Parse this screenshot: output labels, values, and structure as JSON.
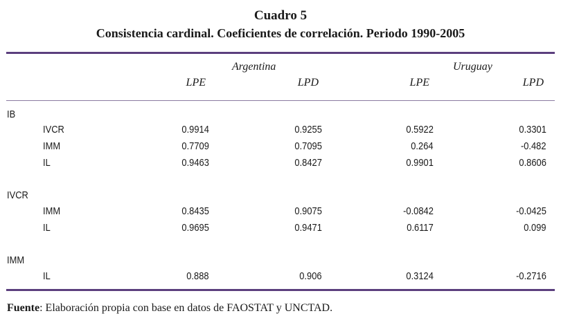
{
  "title": "Cuadro 5",
  "subtitle": "Consistencia cardinal. Coeficientes de correlación. Periodo 1990-2005",
  "countries": [
    "Argentina",
    "Uruguay"
  ],
  "columns": [
    "LPE",
    "LPD",
    "LPE",
    "LPD"
  ],
  "groups": [
    {
      "label": "IB",
      "rows": [
        {
          "label": "IVCR",
          "values": [
            "0.9914",
            "0.9255",
            "0.5922",
            "0.3301"
          ]
        },
        {
          "label": "IMM",
          "values": [
            "0.7709",
            "0.7095",
            "0.264",
            "-0.482"
          ]
        },
        {
          "label": "IL",
          "values": [
            "0.9463",
            "0.8427",
            "0.9901",
            "0.8606"
          ]
        }
      ]
    },
    {
      "label": "IVCR",
      "rows": [
        {
          "label": "IMM",
          "values": [
            "0.8435",
            "0.9075",
            "-0.0842",
            "-0.0425"
          ]
        },
        {
          "label": "IL",
          "values": [
            "0.9695",
            "0.9471",
            "0.6117",
            "0.099"
          ]
        }
      ]
    },
    {
      "label": "IMM",
      "rows": [
        {
          "label": "IL",
          "values": [
            "0.888",
            "0.906",
            "0.3124",
            "-0.2716"
          ]
        }
      ]
    }
  ],
  "footnote": {
    "label": "Fuente",
    "text": ": Elaboración propia con base en datos de FAOSTAT y UNCTAD."
  }
}
